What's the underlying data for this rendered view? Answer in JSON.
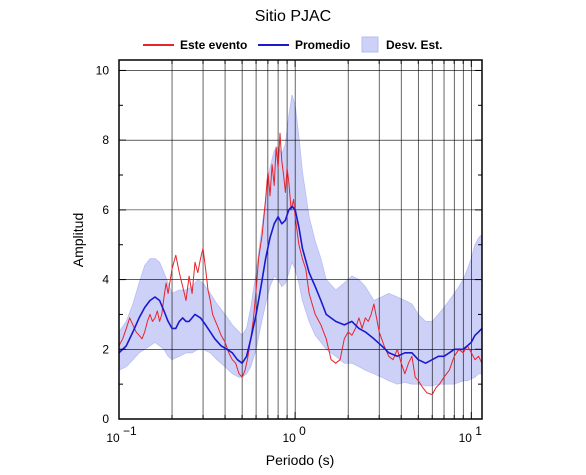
{
  "chart_data": {
    "type": "line",
    "title": "Sitio PJAC",
    "xlabel": "Periodo (s)",
    "ylabel": "Amplitud",
    "x_scale": "log",
    "xlim": [
      0.1,
      11.5
    ],
    "ylim": [
      0,
      10.3
    ],
    "x_ticks": [
      {
        "value": 0.1,
        "base": "10",
        "exp": "−1"
      },
      {
        "value": 1,
        "base": "10",
        "exp": "0"
      },
      {
        "value": 10,
        "base": "10",
        "exp": "1"
      }
    ],
    "y_ticks": [
      "0",
      "2",
      "4",
      "6",
      "8",
      "10"
    ],
    "grid": true,
    "legend_position": "top",
    "colors": {
      "event": "#e8242c",
      "mean": "#1a1acc",
      "band_fill": "#cdd0f7",
      "band_stroke": "#b9bdf3",
      "grid": "#000000"
    },
    "series": [
      {
        "name": "Este evento",
        "style": "line",
        "color": "#e8242c",
        "x": [
          0.1,
          0.105,
          0.11,
          0.115,
          0.12,
          0.125,
          0.13,
          0.135,
          0.14,
          0.145,
          0.15,
          0.155,
          0.16,
          0.165,
          0.17,
          0.175,
          0.18,
          0.185,
          0.19,
          0.2,
          0.21,
          0.22,
          0.23,
          0.24,
          0.25,
          0.26,
          0.27,
          0.28,
          0.29,
          0.3,
          0.31,
          0.32,
          0.33,
          0.34,
          0.36,
          0.38,
          0.4,
          0.42,
          0.44,
          0.46,
          0.48,
          0.5,
          0.52,
          0.54,
          0.56,
          0.58,
          0.6,
          0.62,
          0.65,
          0.68,
          0.7,
          0.72,
          0.74,
          0.76,
          0.78,
          0.8,
          0.82,
          0.84,
          0.86,
          0.88,
          0.9,
          0.92,
          0.95,
          0.98,
          1.0,
          1.05,
          1.1,
          1.15,
          1.2,
          1.3,
          1.4,
          1.5,
          1.6,
          1.7,
          1.8,
          1.9,
          2.0,
          2.1,
          2.2,
          2.3,
          2.4,
          2.5,
          2.6,
          2.7,
          2.8,
          3.0,
          3.2,
          3.4,
          3.6,
          3.8,
          4.0,
          4.2,
          4.4,
          4.6,
          4.8,
          5.0,
          5.3,
          5.6,
          6.0,
          6.3,
          6.6,
          7.0,
          7.5,
          8.0,
          8.5,
          9.0,
          9.5,
          10.0,
          10.5,
          11.0,
          11.5
        ],
        "y": [
          2.1,
          2.3,
          2.6,
          2.9,
          2.7,
          2.5,
          2.4,
          2.3,
          2.5,
          2.8,
          3.0,
          2.8,
          2.9,
          3.1,
          2.8,
          3.0,
          3.5,
          3.9,
          3.6,
          4.3,
          4.7,
          4.2,
          3.8,
          3.4,
          4.1,
          3.6,
          4.5,
          4.2,
          4.6,
          4.9,
          4.3,
          3.7,
          3.4,
          3.0,
          2.7,
          2.4,
          2.2,
          1.9,
          1.7,
          1.6,
          1.3,
          1.2,
          1.4,
          1.8,
          2.3,
          2.9,
          3.7,
          4.6,
          5.3,
          6.3,
          7.1,
          6.4,
          7.3,
          6.7,
          7.8,
          7.2,
          8.2,
          7.4,
          7.0,
          6.5,
          7.2,
          6.8,
          6.0,
          6.3,
          5.8,
          5.0,
          4.6,
          4.3,
          3.6,
          3.0,
          2.7,
          2.3,
          1.7,
          1.6,
          1.7,
          2.3,
          2.5,
          2.4,
          2.6,
          2.9,
          2.6,
          2.9,
          2.8,
          3.0,
          3.3,
          2.5,
          2.1,
          1.8,
          1.7,
          2.0,
          1.6,
          1.3,
          1.6,
          1.8,
          1.2,
          1.1,
          0.9,
          0.75,
          0.7,
          0.9,
          1.0,
          1.2,
          1.4,
          1.8,
          2.0,
          1.9,
          2.1,
          1.9,
          1.7,
          1.8,
          1.6
        ]
      },
      {
        "name": "Promedio",
        "style": "line",
        "color": "#1a1acc",
        "x": [
          0.1,
          0.11,
          0.12,
          0.13,
          0.14,
          0.15,
          0.16,
          0.17,
          0.18,
          0.19,
          0.2,
          0.21,
          0.22,
          0.23,
          0.24,
          0.25,
          0.27,
          0.29,
          0.31,
          0.33,
          0.35,
          0.38,
          0.41,
          0.44,
          0.47,
          0.5,
          0.53,
          0.56,
          0.6,
          0.64,
          0.68,
          0.72,
          0.76,
          0.8,
          0.84,
          0.88,
          0.92,
          0.96,
          1.0,
          1.05,
          1.1,
          1.2,
          1.3,
          1.4,
          1.5,
          1.7,
          1.9,
          2.1,
          2.3,
          2.5,
          2.8,
          3.1,
          3.4,
          3.8,
          4.2,
          4.6,
          5.0,
          5.5,
          6.0,
          6.5,
          7.0,
          7.5,
          8.0,
          8.5,
          9.0,
          9.5,
          10.0,
          10.5,
          11.0,
          11.5
        ],
        "y": [
          1.9,
          2.1,
          2.5,
          2.9,
          3.2,
          3.4,
          3.5,
          3.4,
          3.1,
          2.8,
          2.6,
          2.6,
          2.8,
          2.9,
          2.8,
          2.8,
          3.0,
          2.9,
          2.7,
          2.5,
          2.3,
          2.1,
          2.0,
          1.9,
          1.7,
          1.6,
          1.8,
          2.3,
          3.0,
          3.8,
          4.6,
          5.2,
          5.6,
          5.8,
          5.6,
          5.7,
          6.0,
          6.1,
          6.0,
          5.5,
          4.9,
          4.2,
          3.8,
          3.4,
          3.0,
          2.8,
          2.7,
          2.8,
          2.6,
          2.5,
          2.3,
          2.1,
          1.9,
          1.8,
          1.9,
          1.9,
          1.7,
          1.6,
          1.7,
          1.8,
          1.8,
          1.9,
          2.0,
          2.0,
          2.0,
          2.1,
          2.2,
          2.4,
          2.5,
          2.6
        ]
      },
      {
        "name": "Desv. Est.",
        "style": "band",
        "color": "#cdd0f7",
        "x": [
          0.1,
          0.11,
          0.12,
          0.13,
          0.14,
          0.15,
          0.16,
          0.17,
          0.18,
          0.19,
          0.2,
          0.22,
          0.24,
          0.26,
          0.28,
          0.3,
          0.33,
          0.36,
          0.4,
          0.44,
          0.48,
          0.5,
          0.53,
          0.56,
          0.6,
          0.64,
          0.68,
          0.72,
          0.76,
          0.8,
          0.84,
          0.88,
          0.92,
          0.96,
          1.0,
          1.05,
          1.1,
          1.2,
          1.3,
          1.4,
          1.5,
          1.7,
          1.9,
          2.1,
          2.3,
          2.5,
          2.8,
          3.1,
          3.4,
          3.8,
          4.2,
          4.6,
          5.0,
          5.5,
          6.0,
          6.5,
          7.0,
          7.5,
          8.0,
          8.5,
          9.0,
          9.5,
          10.0,
          10.5,
          11.0,
          11.5
        ],
        "upper": [
          2.5,
          2.8,
          3.3,
          3.9,
          4.4,
          4.6,
          4.6,
          4.5,
          4.2,
          3.9,
          3.6,
          3.7,
          3.7,
          3.8,
          4.0,
          3.9,
          3.6,
          3.3,
          3.0,
          2.7,
          2.5,
          2.4,
          2.6,
          3.2,
          4.2,
          5.3,
          6.3,
          7.2,
          7.7,
          7.8,
          7.6,
          7.9,
          8.7,
          9.3,
          9.0,
          8.1,
          7.1,
          5.8,
          5.1,
          4.6,
          4.0,
          3.7,
          3.9,
          4.1,
          4.0,
          3.8,
          3.4,
          3.5,
          3.6,
          3.5,
          3.4,
          3.3,
          3.0,
          2.8,
          2.8,
          3.0,
          3.2,
          3.4,
          3.6,
          3.8,
          4.0,
          4.3,
          4.6,
          5.0,
          5.2,
          5.3
        ],
        "lower": [
          1.4,
          1.5,
          1.7,
          1.9,
          2.0,
          2.1,
          2.2,
          2.1,
          2.0,
          1.8,
          1.7,
          1.8,
          1.9,
          1.9,
          2.0,
          2.0,
          1.9,
          1.7,
          1.5,
          1.3,
          1.2,
          1.2,
          1.3,
          1.5,
          2.0,
          2.7,
          3.3,
          3.8,
          4.1,
          4.0,
          3.8,
          3.9,
          4.2,
          4.5,
          4.3,
          3.9,
          3.4,
          2.8,
          2.4,
          2.2,
          2.0,
          1.8,
          1.6,
          1.6,
          1.5,
          1.4,
          1.3,
          1.2,
          1.1,
          1.0,
          1.05,
          1.0,
          1.0,
          0.95,
          0.95,
          1.0,
          1.0,
          1.0,
          1.0,
          1.05,
          1.1,
          1.1,
          1.15,
          1.2,
          1.3,
          1.3
        ]
      }
    ]
  }
}
